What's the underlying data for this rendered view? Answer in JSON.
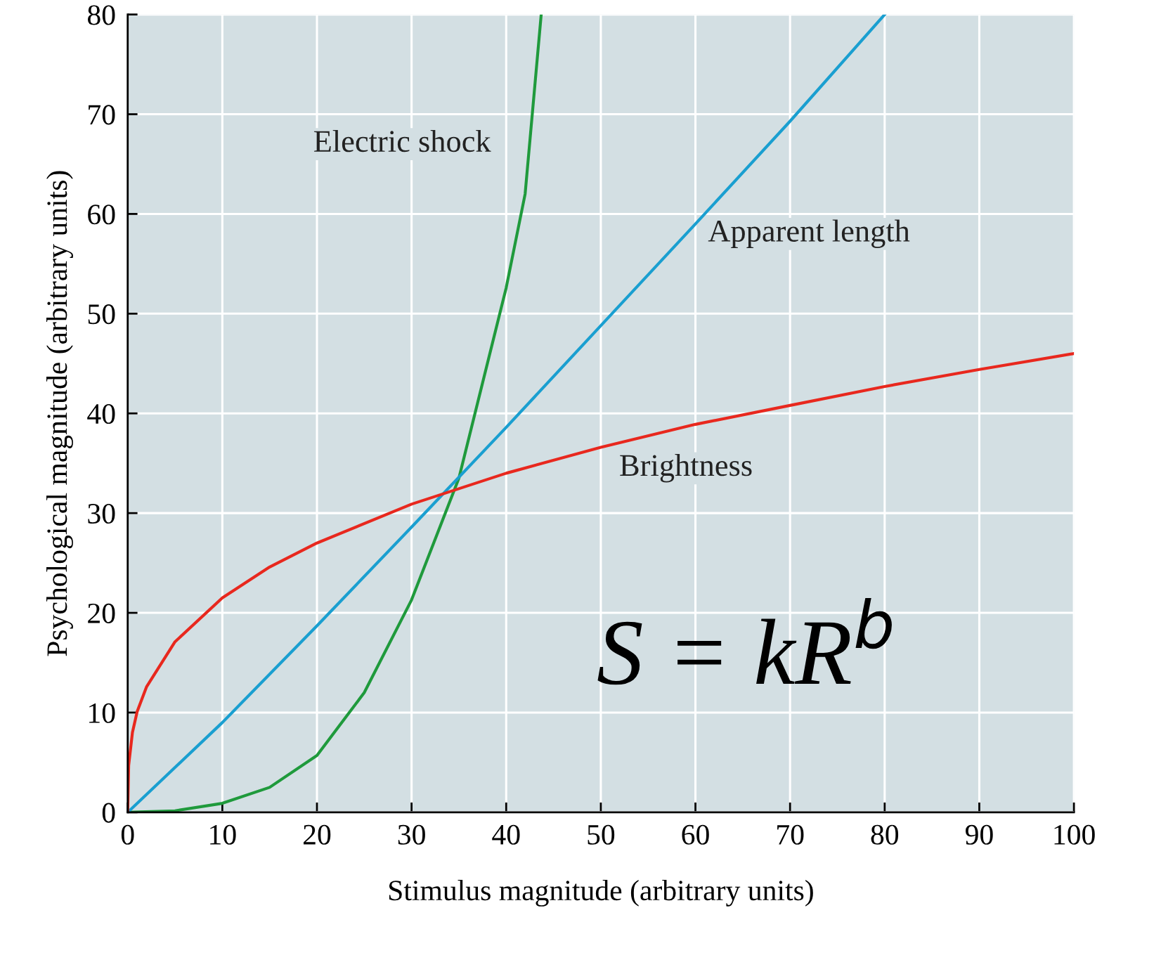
{
  "chart_data": {
    "type": "line",
    "xlabel": "Stimulus magnitude (arbitrary units)",
    "ylabel": "Psychological magnitude (arbitrary units)",
    "xlim": [
      0,
      100
    ],
    "xticks": [
      0,
      10,
      20,
      30,
      40,
      50,
      60,
      70,
      80,
      90,
      100
    ],
    "ylim": [
      0,
      80
    ],
    "yticks": [
      0,
      10,
      20,
      30,
      40,
      50,
      60,
      70,
      80
    ],
    "grid": true,
    "marker": "none",
    "line_style": "solid",
    "series": [
      {
        "name": "Electric shock",
        "color": "#1f9a3c",
        "x": [
          0,
          5,
          10,
          15,
          20,
          25,
          30,
          35,
          40,
          42,
          43.7
        ],
        "values": [
          0,
          0.15,
          0.9,
          2.5,
          5.7,
          12,
          21.3,
          33.5,
          52.6,
          62,
          80
        ]
      },
      {
        "name": "Apparent length",
        "color": "#1a9fd0",
        "x": [
          0,
          10,
          20,
          30,
          40,
          50,
          60,
          70,
          80
        ],
        "values": [
          0,
          9.0,
          18.7,
          28.6,
          38.6,
          48.8,
          59.0,
          69.3,
          80
        ]
      },
      {
        "name": "Brightness",
        "color": "#e8281e",
        "x": [
          0,
          0.1,
          0.5,
          1,
          2,
          5,
          10,
          15,
          20,
          30,
          40,
          50,
          60,
          70,
          80,
          90,
          100
        ],
        "values": [
          0,
          4.7,
          8.0,
          10.1,
          12.6,
          17.1,
          21.5,
          24.6,
          27.0,
          30.9,
          34.0,
          36.6,
          38.9,
          40.8,
          42.7,
          44.4,
          46
        ]
      }
    ],
    "annotations": [
      "S = kR$^{b}$"
    ]
  }
}
